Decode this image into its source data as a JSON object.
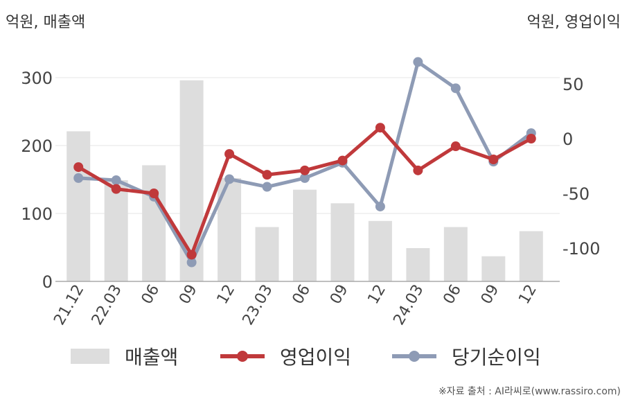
{
  "units": {
    "left": "억원, 매출액",
    "right": "억원, 영업이익"
  },
  "source": "※자료 출처 : AI라씨로(www.rassiro.com)",
  "legend": [
    {
      "label": "매출액",
      "color": "#dddddd"
    },
    {
      "label": "영업이익",
      "color": "#c0393b"
    },
    {
      "label": "당기순이익",
      "color": "#8e9bb5"
    }
  ],
  "chart_data": {
    "type": "bar",
    "categories": [
      "21.12",
      "22.03",
      "06",
      "09",
      "12",
      "23.03",
      "06",
      "09",
      "12",
      "24.03",
      "06",
      "09",
      "12"
    ],
    "y_left": {
      "ticks": [
        0,
        100,
        200,
        300
      ],
      "lim": [
        0,
        300
      ]
    },
    "y_right": {
      "ticks": [
        50,
        0,
        -50,
        -100
      ],
      "lim": [
        -130,
        70
      ]
    },
    "grid": true,
    "series": [
      {
        "name": "매출액",
        "type": "bar",
        "axis": "left",
        "color": "#dddddd",
        "values": [
          221,
          149,
          171,
          296,
          152,
          80,
          135,
          115,
          89,
          49,
          80,
          37,
          74
        ]
      },
      {
        "name": "영업이익",
        "type": "line",
        "axis": "right",
        "color": "#c0393b",
        "values": [
          -26,
          -46,
          -50,
          -106,
          -14,
          -33,
          -29,
          -20,
          10,
          -29,
          -7,
          -19,
          0
        ]
      },
      {
        "name": "당기순이익",
        "type": "line",
        "axis": "right",
        "color": "#8e9bb5",
        "values": [
          -36,
          -38,
          -53,
          -113,
          -37,
          -44,
          -36,
          -22,
          -62,
          70,
          46,
          -21,
          5
        ]
      }
    ]
  }
}
